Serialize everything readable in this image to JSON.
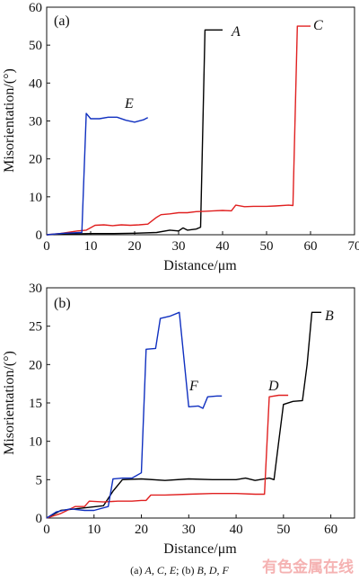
{
  "chart_data": [
    {
      "type": "line",
      "panel_label": "(a)",
      "xlabel": "Distance/μm",
      "ylabel": "Misorientation/(°)",
      "xlim": [
        0,
        70
      ],
      "ylim": [
        0,
        60
      ],
      "xticks": [
        0,
        10,
        20,
        30,
        40,
        50,
        60,
        70
      ],
      "yticks": [
        0,
        10,
        20,
        30,
        40,
        50,
        60
      ],
      "series": [
        {
          "name": "A",
          "color": "#000000",
          "points": [
            [
              0,
              0
            ],
            [
              5,
              0.2
            ],
            [
              10,
              0.3
            ],
            [
              15,
              0.3
            ],
            [
              20,
              0.4
            ],
            [
              25,
              0.6
            ],
            [
              28,
              1.2
            ],
            [
              30,
              1.0
            ],
            [
              31,
              1.8
            ],
            [
              32,
              1.2
            ],
            [
              34,
              1.5
            ],
            [
              35,
              2.0
            ],
            [
              36,
              54
            ],
            [
              38,
              54
            ],
            [
              40,
              54
            ]
          ]
        },
        {
          "name": "C",
          "color": "#e02020",
          "points": [
            [
              0,
              0
            ],
            [
              3,
              0.3
            ],
            [
              7,
              1.0
            ],
            [
              9,
              1.2
            ],
            [
              11,
              2.5
            ],
            [
              13,
              2.6
            ],
            [
              15,
              2.4
            ],
            [
              17,
              2.6
            ],
            [
              19,
              2.5
            ],
            [
              21,
              2.6
            ],
            [
              23,
              2.8
            ],
            [
              25,
              4.6
            ],
            [
              26,
              5.3
            ],
            [
              28,
              5.5
            ],
            [
              30,
              5.8
            ],
            [
              32,
              5.8
            ],
            [
              34,
              6.1
            ],
            [
              36,
              6.2
            ],
            [
              38,
              6.3
            ],
            [
              40,
              6.4
            ],
            [
              42,
              6.3
            ],
            [
              43,
              7.8
            ],
            [
              45,
              7.4
            ],
            [
              47,
              7.5
            ],
            [
              50,
              7.5
            ],
            [
              52,
              7.6
            ],
            [
              55,
              7.8
            ],
            [
              56,
              7.7
            ],
            [
              57,
              55
            ],
            [
              59,
              55
            ],
            [
              60,
              55
            ]
          ]
        },
        {
          "name": "E",
          "color": "#1030c0",
          "points": [
            [
              0,
              0
            ],
            [
              4,
              0.4
            ],
            [
              8,
              0.6
            ],
            [
              9,
              32
            ],
            [
              10,
              30.6
            ],
            [
              12,
              30.6
            ],
            [
              14,
              31
            ],
            [
              16,
              31
            ],
            [
              18,
              30.2
            ],
            [
              20,
              29.7
            ],
            [
              22,
              30.3
            ],
            [
              23,
              30.9
            ]
          ]
        }
      ],
      "curve_labels": [
        "A",
        "C",
        "E"
      ]
    },
    {
      "type": "line",
      "panel_label": "(b)",
      "xlabel": "Distance/μm",
      "ylabel": "Misorientation/(°)",
      "xlim": [
        0,
        65
      ],
      "ylim": [
        0,
        30
      ],
      "xticks": [
        0,
        10,
        20,
        30,
        40,
        50,
        60
      ],
      "yticks": [
        0,
        5,
        10,
        15,
        20,
        25,
        30
      ],
      "series": [
        {
          "name": "B",
          "color": "#000000",
          "points": [
            [
              0,
              0
            ],
            [
              3,
              1.0
            ],
            [
              6,
              1.2
            ],
            [
              9,
              1.4
            ],
            [
              12,
              1.6
            ],
            [
              14,
              3.5
            ],
            [
              16,
              5.0
            ],
            [
              20,
              5.1
            ],
            [
              25,
              4.9
            ],
            [
              30,
              5.1
            ],
            [
              35,
              5.0
            ],
            [
              40,
              5.0
            ],
            [
              42,
              5.2
            ],
            [
              44,
              4.9
            ],
            [
              47,
              5.2
            ],
            [
              48,
              5.0
            ],
            [
              49,
              10
            ],
            [
              50,
              14.8
            ],
            [
              52,
              15.2
            ],
            [
              54,
              15.3
            ],
            [
              55,
              20
            ],
            [
              56,
              26.8
            ],
            [
              58,
              26.8
            ]
          ]
        },
        {
          "name": "D",
          "color": "#e02020",
          "points": [
            [
              0,
              0
            ],
            [
              3,
              0.6
            ],
            [
              6,
              1.5
            ],
            [
              8,
              1.5
            ],
            [
              9,
              2.2
            ],
            [
              12,
              2.1
            ],
            [
              15,
              2.2
            ],
            [
              18,
              2.2
            ],
            [
              20,
              2.3
            ],
            [
              21,
              2.3
            ],
            [
              22,
              3.0
            ],
            [
              25,
              3.0
            ],
            [
              30,
              3.1
            ],
            [
              35,
              3.2
            ],
            [
              40,
              3.2
            ],
            [
              44,
              3.1
            ],
            [
              46,
              3.1
            ],
            [
              47,
              15.8
            ],
            [
              49,
              16.0
            ],
            [
              51,
              16.0
            ]
          ]
        },
        {
          "name": "F",
          "color": "#1030c0",
          "points": [
            [
              0,
              0
            ],
            [
              2,
              0.8
            ],
            [
              5,
              1.2
            ],
            [
              8,
              1.0
            ],
            [
              10,
              1.0
            ],
            [
              13,
              1.5
            ],
            [
              14,
              5.1
            ],
            [
              16,
              5.2
            ],
            [
              18,
              5.2
            ],
            [
              20,
              5.9
            ],
            [
              21,
              22
            ],
            [
              23,
              22.1
            ],
            [
              24,
              26
            ],
            [
              26,
              26.3
            ],
            [
              28,
              26.8
            ],
            [
              30,
              14.5
            ],
            [
              32,
              14.6
            ],
            [
              33,
              14.3
            ],
            [
              34,
              15.8
            ],
            [
              36,
              15.9
            ],
            [
              37,
              15.9
            ]
          ]
        }
      ],
      "curve_labels": [
        "B",
        "D",
        "F"
      ]
    }
  ],
  "caption": {
    "prefix": "(a) ",
    "group1": "A, C, E",
    "mid": "; (b) ",
    "group2": "B, D, F"
  },
  "watermark": "有色金属在线"
}
